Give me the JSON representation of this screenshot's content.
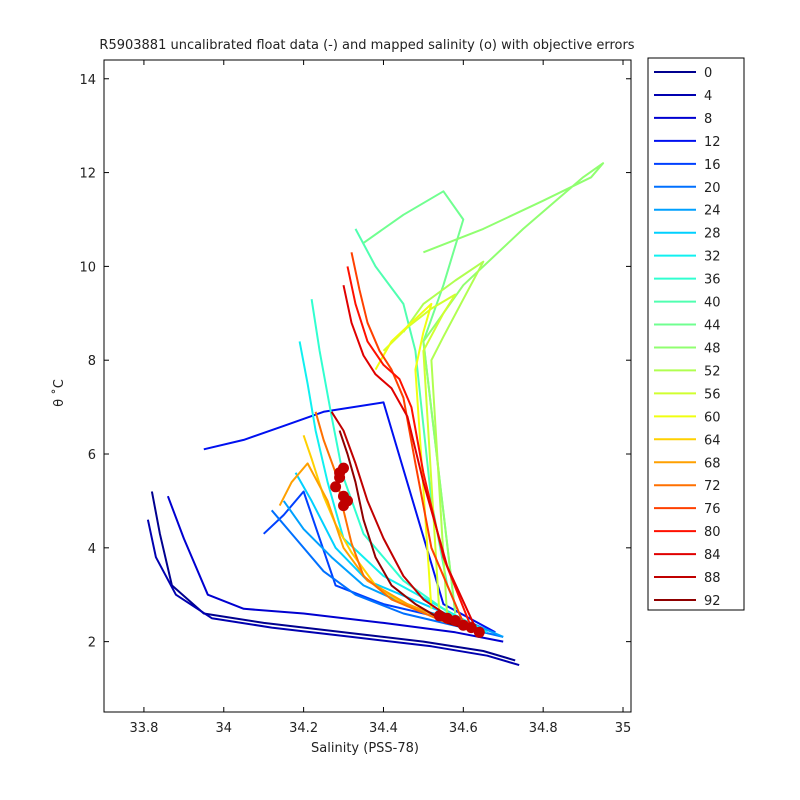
{
  "chart_data": {
    "type": "line",
    "title": "R5903881 uncalibrated float data (-) and mapped salinity (o) with objective errors",
    "xlabel": "Salinity (PSS-78)",
    "ylabel": "θ ˚C",
    "xlim": [
      33.7,
      35.02
    ],
    "ylim": [
      0.5,
      14.4
    ],
    "xticks": [
      "33.8",
      "34",
      "34.2",
      "34.4",
      "34.6",
      "34.8",
      "35"
    ],
    "yticks": [
      "2",
      "4",
      "6",
      "8",
      "10",
      "12",
      "14"
    ],
    "legend_position": "right-outside",
    "legend": [
      {
        "label": "0",
        "color": "#00008f"
      },
      {
        "label": "4",
        "color": "#0000b0"
      },
      {
        "label": "8",
        "color": "#0000d0"
      },
      {
        "label": "12",
        "color": "#0010f0"
      },
      {
        "label": "16",
        "color": "#0040ff"
      },
      {
        "label": "20",
        "color": "#0070ff"
      },
      {
        "label": "24",
        "color": "#00a0ff"
      },
      {
        "label": "28",
        "color": "#00d0ff"
      },
      {
        "label": "32",
        "color": "#10f0f0"
      },
      {
        "label": "36",
        "color": "#30ffd0"
      },
      {
        "label": "40",
        "color": "#50ffb0"
      },
      {
        "label": "44",
        "color": "#70ff90"
      },
      {
        "label": "48",
        "color": "#90ff70"
      },
      {
        "label": "52",
        "color": "#b0ff50"
      },
      {
        "label": "56",
        "color": "#d0ff30"
      },
      {
        "label": "60",
        "color": "#f0ff10"
      },
      {
        "label": "64",
        "color": "#ffd000"
      },
      {
        "label": "68",
        "color": "#ffa000"
      },
      {
        "label": "72",
        "color": "#ff7000"
      },
      {
        "label": "76",
        "color": "#ff4000"
      },
      {
        "label": "80",
        "color": "#ff1000"
      },
      {
        "label": "84",
        "color": "#e00000"
      },
      {
        "label": "88",
        "color": "#c00000"
      },
      {
        "label": "92",
        "color": "#8f0000"
      }
    ],
    "series": [
      {
        "profile": 0,
        "color": "#00008f",
        "x": [
          33.82,
          33.84,
          33.87,
          33.95,
          34.1,
          34.3,
          34.5,
          34.65,
          34.73
        ],
        "y": [
          5.2,
          4.3,
          3.2,
          2.6,
          2.4,
          2.2,
          2.0,
          1.8,
          1.6
        ]
      },
      {
        "profile": 4,
        "color": "#0000b0",
        "x": [
          33.81,
          33.83,
          33.88,
          33.97,
          34.12,
          34.32,
          34.52,
          34.66,
          34.74
        ],
        "y": [
          4.6,
          3.8,
          3.0,
          2.5,
          2.3,
          2.1,
          1.9,
          1.7,
          1.5
        ]
      },
      {
        "profile": 8,
        "color": "#0000d0",
        "x": [
          33.86,
          33.9,
          33.96,
          34.05,
          34.2,
          34.4,
          34.58,
          34.7
        ],
        "y": [
          5.1,
          4.2,
          3.0,
          2.7,
          2.6,
          2.4,
          2.2,
          2.0
        ]
      },
      {
        "profile": 12,
        "color": "#0010f0",
        "x": [
          33.95,
          34.05,
          34.15,
          34.25,
          34.4,
          34.55,
          34.68
        ],
        "y": [
          6.1,
          6.3,
          6.6,
          6.9,
          7.1,
          2.8,
          2.2
        ]
      },
      {
        "profile": 16,
        "color": "#0040ff",
        "x": [
          34.1,
          34.15,
          34.2,
          34.28,
          34.4,
          34.55,
          34.68
        ],
        "y": [
          4.3,
          4.7,
          5.2,
          3.2,
          2.8,
          2.5,
          2.2
        ]
      },
      {
        "profile": 20,
        "color": "#0070ff",
        "x": [
          34.12,
          34.18,
          34.25,
          34.33,
          34.45,
          34.6,
          34.7
        ],
        "y": [
          4.8,
          4.2,
          3.5,
          3.0,
          2.6,
          2.3,
          2.1
        ]
      },
      {
        "profile": 24,
        "color": "#00a0ff",
        "x": [
          34.15,
          34.2,
          34.27,
          34.35,
          34.48,
          34.62,
          34.7
        ],
        "y": [
          5.0,
          4.4,
          3.8,
          3.2,
          2.7,
          2.4,
          2.1
        ]
      },
      {
        "profile": 28,
        "color": "#00d0ff",
        "x": [
          34.18,
          34.22,
          34.28,
          34.36,
          34.5,
          34.64
        ],
        "y": [
          5.6,
          5.0,
          4.0,
          3.3,
          2.8,
          2.3
        ]
      },
      {
        "profile": 32,
        "color": "#10f0f0",
        "x": [
          34.19,
          34.21,
          34.23,
          34.26,
          34.3,
          34.4,
          34.55,
          34.66
        ],
        "y": [
          8.4,
          7.5,
          6.5,
          5.4,
          4.2,
          3.4,
          2.7,
          2.2
        ]
      },
      {
        "profile": 36,
        "color": "#30ffd0",
        "x": [
          34.22,
          34.24,
          34.27,
          34.3,
          34.35,
          34.45,
          34.6
        ],
        "y": [
          9.3,
          8.2,
          6.8,
          5.5,
          4.3,
          3.3,
          2.4
        ]
      },
      {
        "profile": 40,
        "color": "#50ffb0",
        "x": [
          34.33,
          34.38,
          34.45,
          34.48,
          34.52,
          34.56,
          34.6
        ],
        "y": [
          10.8,
          10.0,
          9.2,
          8.2,
          5.0,
          3.2,
          2.4
        ]
      },
      {
        "profile": 44,
        "color": "#70ff90",
        "x": [
          34.35,
          34.45,
          34.55,
          34.6,
          34.55,
          34.5,
          34.58
        ],
        "y": [
          10.5,
          11.1,
          11.6,
          11.0,
          9.6,
          8.4,
          2.6
        ]
      },
      {
        "profile": 48,
        "color": "#90ff70",
        "x": [
          34.5,
          34.65,
          34.8,
          34.92,
          34.95,
          34.9,
          34.75,
          34.6,
          34.5,
          34.58
        ],
        "y": [
          10.3,
          10.8,
          11.4,
          11.9,
          12.2,
          11.9,
          10.8,
          9.6,
          8.4,
          2.6
        ]
      },
      {
        "profile": 52,
        "color": "#b0ff50",
        "x": [
          34.45,
          34.5,
          34.58,
          34.65,
          34.6,
          34.55,
          34.52,
          34.56
        ],
        "y": [
          8.6,
          9.2,
          9.7,
          10.1,
          9.3,
          8.5,
          8.0,
          2.5
        ]
      },
      {
        "profile": 56,
        "color": "#d0ff30",
        "x": [
          34.4,
          34.46,
          34.52,
          34.58,
          34.55,
          34.5,
          34.54
        ],
        "y": [
          8.2,
          8.7,
          9.1,
          9.4,
          9.0,
          8.2,
          2.6
        ]
      },
      {
        "profile": 60,
        "color": "#f0ff10",
        "x": [
          34.38,
          34.42,
          34.47,
          34.52,
          34.5,
          34.48,
          34.52
        ],
        "y": [
          7.8,
          8.4,
          8.8,
          9.2,
          8.6,
          7.8,
          2.7
        ]
      },
      {
        "profile": 64,
        "color": "#ffd000",
        "x": [
          34.2,
          34.22,
          34.25,
          34.28,
          34.32,
          34.38,
          34.45,
          34.56
        ],
        "y": [
          6.4,
          5.9,
          5.1,
          4.5,
          3.9,
          3.2,
          2.8,
          2.4
        ]
      },
      {
        "profile": 68,
        "color": "#ffa000",
        "x": [
          34.14,
          34.17,
          34.21,
          34.26,
          34.3,
          34.36,
          34.46,
          34.58
        ],
        "y": [
          4.9,
          5.4,
          5.8,
          5.0,
          4.0,
          3.3,
          2.8,
          2.4
        ]
      },
      {
        "profile": 72,
        "color": "#ff7000",
        "x": [
          34.23,
          34.25,
          34.28,
          34.3,
          34.32,
          34.35,
          34.42,
          34.56
        ],
        "y": [
          6.9,
          6.3,
          5.6,
          4.8,
          4.1,
          3.4,
          2.9,
          2.4
        ]
      },
      {
        "profile": 76,
        "color": "#ff4000",
        "x": [
          34.32,
          34.34,
          34.36,
          34.39,
          34.42,
          34.45,
          34.48,
          34.52,
          34.6
        ],
        "y": [
          10.3,
          9.5,
          8.8,
          8.2,
          7.8,
          7.2,
          5.8,
          4.0,
          2.4
        ]
      },
      {
        "profile": 80,
        "color": "#ff1000",
        "x": [
          34.31,
          34.33,
          34.36,
          34.4,
          34.44,
          34.47,
          34.5,
          34.55,
          34.62
        ],
        "y": [
          10.0,
          9.2,
          8.4,
          7.9,
          7.6,
          7.0,
          5.6,
          3.8,
          2.3
        ]
      },
      {
        "profile": 84,
        "color": "#e00000",
        "x": [
          34.3,
          34.32,
          34.35,
          34.38,
          34.42,
          34.46,
          34.5,
          34.56,
          34.63
        ],
        "y": [
          9.6,
          8.8,
          8.1,
          7.7,
          7.4,
          6.8,
          5.4,
          3.6,
          2.3
        ]
      },
      {
        "profile": 88,
        "color": "#c00000",
        "x": [
          34.27,
          34.3,
          34.33,
          34.36,
          34.4,
          34.45,
          34.5,
          34.57,
          34.64
        ],
        "y": [
          6.9,
          6.5,
          5.8,
          5.0,
          4.2,
          3.4,
          2.9,
          2.5,
          2.2
        ]
      },
      {
        "profile": 92,
        "color": "#8f0000",
        "x": [
          34.29,
          34.31,
          34.33,
          34.35,
          34.38,
          34.42,
          34.48,
          34.56,
          34.64
        ],
        "y": [
          6.5,
          6.0,
          5.4,
          4.6,
          3.8,
          3.2,
          2.8,
          2.4,
          2.2
        ]
      }
    ],
    "mapped_salinity_points": {
      "marker": "o",
      "color": "#c00000",
      "x": [
        34.3,
        34.29,
        34.28,
        34.3,
        34.31,
        34.3,
        34.29,
        34.54,
        34.56,
        34.58,
        34.6,
        34.62,
        34.64
      ],
      "y": [
        5.7,
        5.5,
        5.3,
        5.1,
        5.0,
        4.9,
        5.6,
        2.55,
        2.5,
        2.45,
        2.35,
        2.3,
        2.2
      ]
    }
  }
}
